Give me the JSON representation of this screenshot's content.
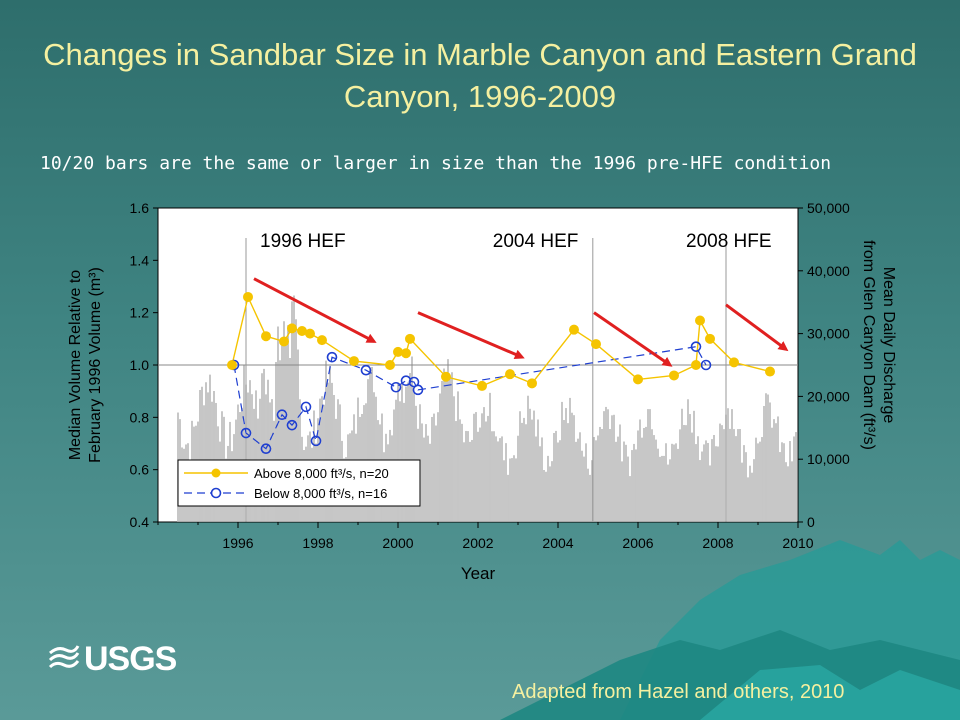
{
  "slide": {
    "title": "Changes in Sandbar Size in Marble Canyon and Eastern Grand Canyon, 1996-2009",
    "subtitle": "10/20 bars are the same or larger in size than the 1996 pre-HFE condition",
    "credit": "Adapted from Hazel and others, 2010",
    "logo_text": "USGS"
  },
  "colors": {
    "above_series": "#f5c400",
    "below_series": "#1f3fd0",
    "trend_arrows": "#e02020",
    "discharge_bars": "#b4b4b4"
  },
  "chart_data": {
    "type": "line",
    "title": "",
    "xlabel": "Year",
    "ylabel": "Median Volume Relative to February 1996 Volume (m³)",
    "y2label": "Mean Daily Discharge from Glen Canyon Dam (ft³/s)",
    "xlim": [
      1994.0,
      2010.0
    ],
    "ylim": [
      0.4,
      1.6
    ],
    "y2lim": [
      0,
      50000
    ],
    "x_ticks": [
      1996,
      1998,
      2000,
      2002,
      2004,
      2006,
      2008,
      2010
    ],
    "x_tick_labels": [
      "1996",
      "1998",
      "2000",
      "2002",
      "2004",
      "2006",
      "2008",
      "2010"
    ],
    "y_ticks": [
      0.4,
      0.6,
      0.8,
      1.0,
      1.2,
      1.4,
      1.6
    ],
    "y_tick_labels": [
      "0.4",
      "0.6",
      "0.8",
      "1.0",
      "1.2",
      "1.4",
      "1.6"
    ],
    "y2_ticks": [
      0,
      10000,
      20000,
      30000,
      40000,
      50000
    ],
    "y2_tick_labels": [
      "0",
      "10,000",
      "20,000",
      "30,000",
      "40,000",
      "50,000"
    ],
    "reference_line_y": 1.0,
    "events": [
      {
        "label": "1996 HEF",
        "x": 1996.2
      },
      {
        "label": "2004 HEF",
        "x": 2004.87
      },
      {
        "label": "2008 HFE",
        "x": 2008.2
      }
    ],
    "grid": false,
    "legend_position": "bottom-left",
    "series": [
      {
        "name": "Above 8,000 ft³/s, n=20",
        "style": "solid",
        "x": [
          1995.85,
          1996.25,
          1996.7,
          1997.15,
          1997.35,
          1997.6,
          1997.8,
          1998.1,
          1998.9,
          1999.8,
          2000.0,
          2000.2,
          2000.3,
          2001.2,
          2002.1,
          2002.8,
          2003.35,
          2004.4,
          2004.95,
          2006.0,
          2006.9,
          2007.45,
          2007.55,
          2007.8,
          2008.4,
          2009.3
        ],
        "values": [
          1.0,
          1.26,
          1.11,
          1.09,
          1.14,
          1.13,
          1.12,
          1.095,
          1.015,
          1.0,
          1.05,
          1.045,
          1.1,
          0.955,
          0.92,
          0.965,
          0.93,
          1.135,
          1.08,
          0.945,
          0.96,
          1.0,
          1.17,
          1.1,
          1.01,
          0.975
        ]
      },
      {
        "name": "Below 8,000 ft³/s, n=16",
        "style": "dashed",
        "x": [
          1995.9,
          1996.2,
          1996.7,
          1997.1,
          1997.35,
          1997.7,
          1997.95,
          1998.35,
          1999.2,
          1999.95,
          2000.2,
          2000.4,
          2000.5,
          2007.45,
          2007.7
        ],
        "values": [
          1.0,
          0.74,
          0.68,
          0.81,
          0.77,
          0.84,
          0.71,
          1.03,
          0.98,
          0.915,
          0.94,
          0.935,
          0.905,
          1.07,
          1.0
        ]
      }
    ],
    "trend_arrows": [
      {
        "from": [
          1996.4,
          1.33
        ],
        "to": [
          1999.4,
          1.09
        ]
      },
      {
        "from": [
          2000.5,
          1.2
        ],
        "to": [
          2003.1,
          1.03
        ]
      },
      {
        "from": [
          2004.9,
          1.2
        ],
        "to": [
          2006.8,
          1.0
        ]
      },
      {
        "from": [
          2008.2,
          1.23
        ],
        "to": [
          2009.7,
          1.06
        ]
      }
    ]
  }
}
